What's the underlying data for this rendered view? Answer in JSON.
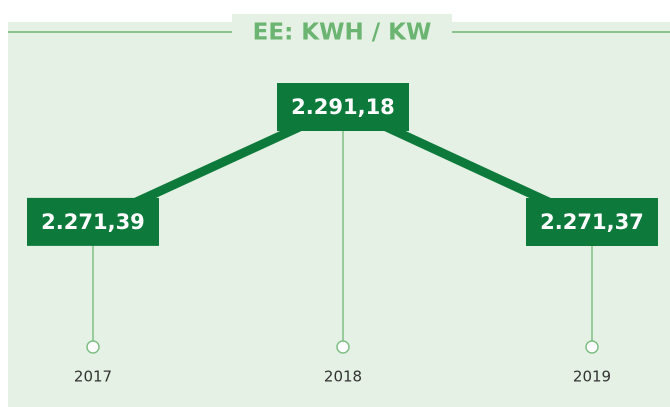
{
  "chart_data": {
    "type": "line",
    "title": "EE: KWH / KW",
    "categories": [
      "2017",
      "2018",
      "2019"
    ],
    "values": [
      2271.39,
      2291.18,
      2271.37
    ],
    "value_labels": [
      "2.271,39",
      "2.291,18",
      "2.271,37"
    ],
    "color": "#0d7a3b"
  }
}
